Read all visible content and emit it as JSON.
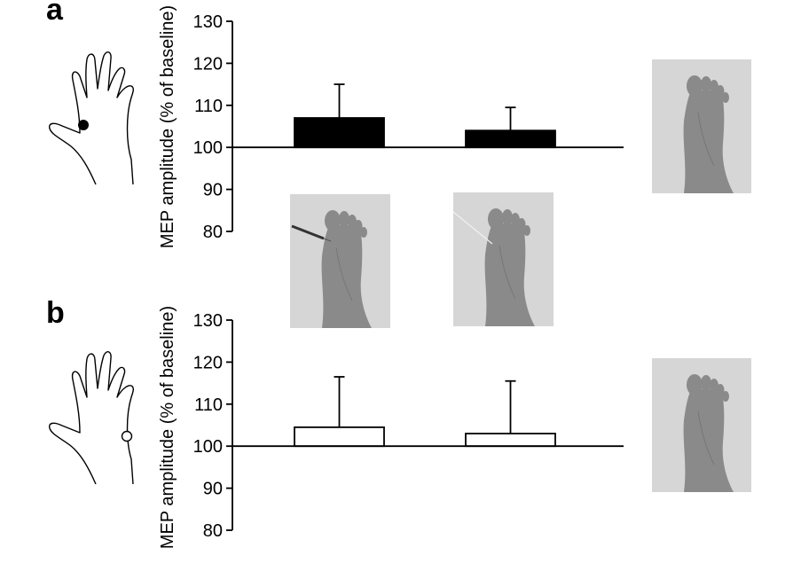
{
  "panels": [
    {
      "label": "a",
      "electrode": "filled",
      "bar_fill": "#000000"
    },
    {
      "label": "b",
      "electrode": "open",
      "bar_fill": "#ffffff"
    }
  ],
  "chart_data": [
    {
      "type": "bar",
      "panel": "a",
      "categories": [
        "",
        ""
      ],
      "values": [
        107,
        104
      ],
      "errors_upper": [
        115,
        109.5
      ],
      "ylabel": "MEP amplitude (% of baseline)",
      "ylim": [
        80,
        130
      ],
      "yticks": [
        80,
        90,
        100,
        110,
        120,
        130
      ],
      "baseline": 100,
      "bar_color": "#000000"
    },
    {
      "type": "bar",
      "panel": "b",
      "categories": [
        "",
        ""
      ],
      "values": [
        104.5,
        103
      ],
      "errors_upper": [
        116.5,
        115.5
      ],
      "ylabel": "MEP amplitude (% of baseline)",
      "ylim": [
        80,
        130
      ],
      "yticks": [
        80,
        90,
        100,
        110,
        120,
        130
      ],
      "baseline": 100,
      "bar_color": "#ffffff"
    }
  ],
  "colors": {
    "axis": "#000000",
    "photo_bg": "#d6d6d6",
    "foot": "#8a8a8a"
  },
  "icons": [
    "hand-icon",
    "foot-photo",
    "syringe-icon"
  ]
}
